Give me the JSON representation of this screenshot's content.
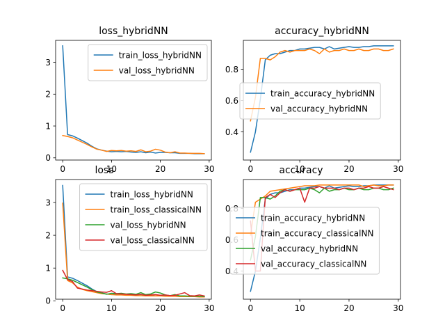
{
  "figure": {
    "background": "#ffffff"
  },
  "chart_data": [
    {
      "type": "line",
      "title": "loss_hybridNN",
      "xlabel": "",
      "ylabel": "",
      "xlim": [
        -1.45,
        30.45
      ],
      "ylim": [
        -0.07,
        3.69
      ],
      "xticks": [
        0,
        10,
        20,
        30
      ],
      "yticks": [
        0,
        1,
        2,
        3
      ],
      "grid": false,
      "legend": "top-right",
      "series": [
        {
          "name": "train_loss_hybridNN",
          "color": "#1f77b4",
          "x": [
            0,
            1,
            2,
            3,
            4,
            5,
            6,
            7,
            8,
            9,
            10,
            11,
            12,
            13,
            14,
            15,
            16,
            17,
            18,
            19,
            20,
            21,
            22,
            23,
            24,
            25,
            26,
            27,
            28,
            29
          ],
          "y": [
            3.52,
            0.73,
            0.69,
            0.62,
            0.54,
            0.46,
            0.36,
            0.28,
            0.24,
            0.21,
            0.19,
            0.2,
            0.19,
            0.2,
            0.18,
            0.17,
            0.19,
            0.16,
            0.18,
            0.15,
            0.17,
            0.17,
            0.16,
            0.16,
            0.14,
            0.14,
            0.14,
            0.13,
            0.13,
            0.13
          ]
        },
        {
          "name": "val_loss_hybridNN",
          "color": "#ff7f0e",
          "x": [
            0,
            1,
            2,
            3,
            4,
            5,
            6,
            7,
            8,
            9,
            10,
            11,
            12,
            13,
            14,
            15,
            16,
            17,
            18,
            19,
            20,
            21,
            22,
            23,
            24,
            25,
            26,
            27,
            28,
            29
          ],
          "y": [
            0.7,
            0.67,
            0.63,
            0.56,
            0.49,
            0.42,
            0.34,
            0.27,
            0.24,
            0.2,
            0.23,
            0.22,
            0.23,
            0.21,
            0.22,
            0.2,
            0.25,
            0.19,
            0.21,
            0.27,
            0.24,
            0.18,
            0.16,
            0.19,
            0.15,
            0.15,
            0.14,
            0.14,
            0.14,
            0.13
          ]
        }
      ]
    },
    {
      "type": "line",
      "title": "accuracy_hybridNN",
      "xlabel": "",
      "ylabel": "",
      "xlim": [
        -1.45,
        30.45
      ],
      "ylim": [
        0.22,
        0.985
      ],
      "xticks": [
        0,
        10,
        20,
        30
      ],
      "yticks": [
        0.4,
        0.6,
        0.8
      ],
      "grid": false,
      "legend": "center-right",
      "series": [
        {
          "name": "train_accuracy_hybridNN",
          "color": "#1f77b4",
          "x": [
            0,
            1,
            2,
            3,
            4,
            5,
            6,
            7,
            8,
            9,
            10,
            11,
            12,
            13,
            14,
            15,
            16,
            17,
            18,
            19,
            20,
            21,
            22,
            23,
            24,
            25,
            26,
            27,
            28,
            29
          ],
          "y": [
            0.27,
            0.4,
            0.61,
            0.86,
            0.89,
            0.9,
            0.9,
            0.91,
            0.92,
            0.92,
            0.93,
            0.93,
            0.935,
            0.94,
            0.94,
            0.93,
            0.945,
            0.93,
            0.935,
            0.94,
            0.945,
            0.94,
            0.94,
            0.945,
            0.945,
            0.95,
            0.95,
            0.95,
            0.95,
            0.95
          ]
        },
        {
          "name": "val_accuracy_hybridNN",
          "color": "#ff7f0e",
          "x": [
            0,
            1,
            2,
            3,
            4,
            5,
            6,
            7,
            8,
            9,
            10,
            11,
            12,
            13,
            14,
            15,
            16,
            17,
            18,
            19,
            20,
            21,
            22,
            23,
            24,
            25,
            26,
            27,
            28,
            29
          ],
          "y": [
            0.47,
            0.62,
            0.87,
            0.87,
            0.86,
            0.88,
            0.91,
            0.92,
            0.91,
            0.92,
            0.92,
            0.92,
            0.93,
            0.92,
            0.9,
            0.93,
            0.91,
            0.92,
            0.92,
            0.93,
            0.92,
            0.92,
            0.93,
            0.92,
            0.92,
            0.93,
            0.93,
            0.92,
            0.92,
            0.93
          ]
        }
      ]
    },
    {
      "type": "line",
      "title": "loss",
      "xlabel": "",
      "ylabel": "",
      "xlim": [
        -1.45,
        30.45
      ],
      "ylim": [
        0.05,
        3.7
      ],
      "xticks": [
        0,
        10,
        20,
        30
      ],
      "yticks": [
        0,
        1,
        2,
        3
      ],
      "grid": false,
      "legend": "top-right",
      "series": [
        {
          "name": "train_loss_hybridNN",
          "color": "#1f77b4",
          "x": [
            0,
            1,
            2,
            3,
            4,
            5,
            6,
            7,
            8,
            9,
            10,
            11,
            12,
            13,
            14,
            15,
            16,
            17,
            18,
            19,
            20,
            21,
            22,
            23,
            24,
            25,
            26,
            27,
            28,
            29
          ],
          "y": [
            3.52,
            0.73,
            0.69,
            0.62,
            0.54,
            0.46,
            0.36,
            0.28,
            0.24,
            0.21,
            0.19,
            0.2,
            0.19,
            0.2,
            0.18,
            0.17,
            0.19,
            0.16,
            0.18,
            0.15,
            0.17,
            0.17,
            0.16,
            0.16,
            0.14,
            0.14,
            0.14,
            0.13,
            0.13,
            0.13
          ]
        },
        {
          "name": "train_loss_classicalNN",
          "color": "#ff7f0e",
          "x": [
            0,
            1,
            2,
            3,
            4,
            5,
            6,
            7,
            8,
            9,
            10,
            11,
            12,
            13,
            14,
            15,
            16,
            17,
            18,
            19,
            20,
            21,
            22,
            23,
            24,
            25,
            26,
            27,
            28,
            29
          ],
          "y": [
            2.98,
            0.62,
            0.55,
            0.42,
            0.35,
            0.31,
            0.28,
            0.25,
            0.22,
            0.21,
            0.19,
            0.18,
            0.18,
            0.17,
            0.17,
            0.16,
            0.16,
            0.15,
            0.15,
            0.15,
            0.15,
            0.14,
            0.14,
            0.14,
            0.13,
            0.13,
            0.13,
            0.13,
            0.12,
            0.12
          ]
        },
        {
          "name": "val_loss_hybridNN",
          "color": "#2ca02c",
          "x": [
            0,
            1,
            2,
            3,
            4,
            5,
            6,
            7,
            8,
            9,
            10,
            11,
            12,
            13,
            14,
            15,
            16,
            17,
            18,
            19,
            20,
            21,
            22,
            23,
            24,
            25,
            26,
            27,
            28,
            29
          ],
          "y": [
            0.7,
            0.67,
            0.63,
            0.56,
            0.49,
            0.42,
            0.34,
            0.27,
            0.24,
            0.2,
            0.23,
            0.22,
            0.23,
            0.21,
            0.22,
            0.2,
            0.25,
            0.19,
            0.21,
            0.27,
            0.24,
            0.18,
            0.16,
            0.19,
            0.15,
            0.15,
            0.14,
            0.14,
            0.14,
            0.13
          ]
        },
        {
          "name": "val_loss_classicalNN",
          "color": "#d62728",
          "x": [
            0,
            1,
            2,
            3,
            4,
            5,
            6,
            7,
            8,
            9,
            10,
            11,
            12,
            13,
            14,
            15,
            16,
            17,
            18,
            19,
            20,
            21,
            22,
            23,
            24,
            25,
            26,
            27,
            28,
            29
          ],
          "y": [
            0.93,
            0.65,
            0.59,
            0.39,
            0.36,
            0.33,
            0.31,
            0.29,
            0.27,
            0.26,
            0.31,
            0.22,
            0.21,
            0.2,
            0.19,
            0.18,
            0.2,
            0.17,
            0.18,
            0.19,
            0.17,
            0.18,
            0.16,
            0.17,
            0.21,
            0.25,
            0.16,
            0.15,
            0.18,
            0.15
          ]
        }
      ]
    },
    {
      "type": "line",
      "title": "accuracy",
      "xlabel": "",
      "ylabel": "",
      "xlim": [
        -1.45,
        30.45
      ],
      "ylim": [
        0.22,
        0.985
      ],
      "xticks": [
        0,
        10,
        20,
        30
      ],
      "yticks": [
        0.4,
        0.6,
        0.8
      ],
      "grid": false,
      "legend": "center-right",
      "series": [
        {
          "name": "train_accuracy_hybridNN",
          "color": "#1f77b4",
          "x": [
            0,
            1,
            2,
            3,
            4,
            5,
            6,
            7,
            8,
            9,
            10,
            11,
            12,
            13,
            14,
            15,
            16,
            17,
            18,
            19,
            20,
            21,
            22,
            23,
            24,
            25,
            26,
            27,
            28,
            29
          ],
          "y": [
            0.27,
            0.4,
            0.61,
            0.86,
            0.89,
            0.9,
            0.9,
            0.91,
            0.92,
            0.92,
            0.93,
            0.93,
            0.935,
            0.94,
            0.94,
            0.93,
            0.945,
            0.93,
            0.935,
            0.94,
            0.945,
            0.94,
            0.94,
            0.945,
            0.945,
            0.95,
            0.95,
            0.95,
            0.95,
            0.95
          ]
        },
        {
          "name": "train_accuracy_classicalNN",
          "color": "#ff7f0e",
          "x": [
            0,
            1,
            2,
            3,
            4,
            5,
            6,
            7,
            8,
            9,
            10,
            11,
            12,
            13,
            14,
            15,
            16,
            17,
            18,
            19,
            20,
            21,
            22,
            23,
            24,
            25,
            26,
            27,
            28,
            29
          ],
          "y": [
            0.63,
            0.84,
            0.86,
            0.88,
            0.91,
            0.915,
            0.92,
            0.925,
            0.93,
            0.935,
            0.94,
            0.945,
            0.945,
            0.945,
            0.95,
            0.95,
            0.95,
            0.95,
            0.95,
            0.95,
            0.95,
            0.95,
            0.95,
            0.94,
            0.945,
            0.95,
            0.945,
            0.945,
            0.95,
            0.95
          ]
        },
        {
          "name": "val_accuracy_hybridNN",
          "color": "#2ca02c",
          "x": [
            0,
            1,
            2,
            3,
            4,
            5,
            6,
            7,
            8,
            9,
            10,
            11,
            12,
            13,
            14,
            15,
            16,
            17,
            18,
            19,
            20,
            21,
            22,
            23,
            24,
            25,
            26,
            27,
            28,
            29
          ],
          "y": [
            0.47,
            0.62,
            0.87,
            0.87,
            0.86,
            0.88,
            0.91,
            0.92,
            0.91,
            0.92,
            0.92,
            0.92,
            0.93,
            0.92,
            0.9,
            0.93,
            0.91,
            0.92,
            0.92,
            0.93,
            0.92,
            0.92,
            0.93,
            0.92,
            0.92,
            0.93,
            0.93,
            0.92,
            0.92,
            0.93
          ]
        },
        {
          "name": "val_accuracy_classicalNN",
          "color": "#d62728",
          "x": [
            0,
            1,
            2,
            3,
            4,
            5,
            6,
            7,
            8,
            9,
            10,
            11,
            12,
            13,
            14,
            15,
            16,
            17,
            18,
            19,
            20,
            21,
            22,
            23,
            24,
            25,
            26,
            27,
            28,
            29
          ],
          "y": [
            0.72,
            0.4,
            0.4,
            0.87,
            0.89,
            0.87,
            0.9,
            0.92,
            0.91,
            0.92,
            0.93,
            0.84,
            0.93,
            0.93,
            0.94,
            0.93,
            0.93,
            0.93,
            0.92,
            0.93,
            0.93,
            0.92,
            0.93,
            0.93,
            0.94,
            0.93,
            0.93,
            0.94,
            0.93,
            0.92
          ]
        }
      ]
    }
  ]
}
